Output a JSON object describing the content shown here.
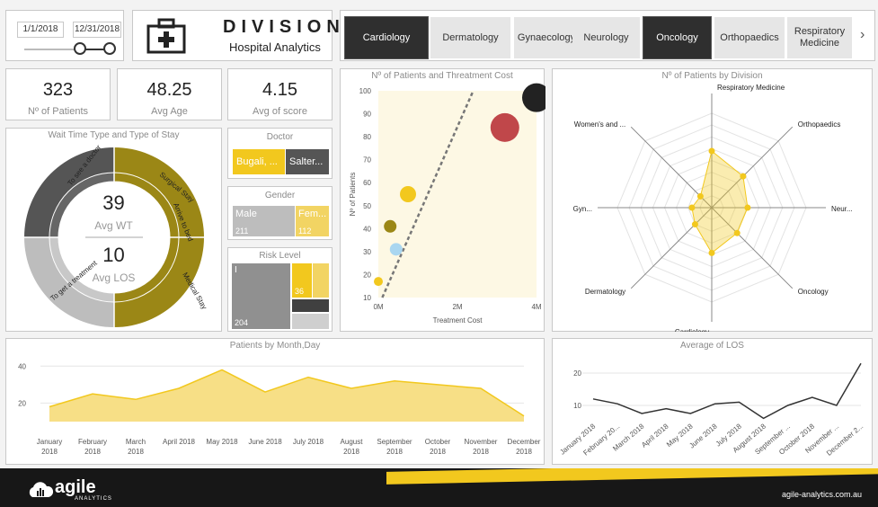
{
  "colors": {
    "accent": "#f2c81e",
    "olive": "#9b8716",
    "dark": "#2f2f2f",
    "grey": "#bdbdbd",
    "red": "#c0474a",
    "blue": "#a9d6f0",
    "footer": "#171717"
  },
  "date_slicer": {
    "start": "1/1/2018",
    "end": "12/31/2018"
  },
  "header": {
    "icon": "medical-bag-icon",
    "title": "DIVISION",
    "subtitle": "Hospital Analytics"
  },
  "tabs": [
    {
      "label": "Cardiology",
      "active": true
    },
    {
      "label": "Dermatology",
      "active": false
    },
    {
      "label": "Gynaecology",
      "active": false
    },
    {
      "label": "Neurology",
      "active": false
    },
    {
      "label": "Oncology",
      "active": true
    },
    {
      "label": "Orthopaedics",
      "active": false
    },
    {
      "label": "Respiratory Medicine",
      "active": false
    }
  ],
  "tabs_next_icon": "chevron-right-icon",
  "kpis": [
    {
      "value": "323",
      "label": "Nº of Patients"
    },
    {
      "value": "48.25",
      "label": "Avg Age"
    },
    {
      "value": "4.15",
      "label": "Avg of score"
    }
  ],
  "wait_time": {
    "title": "Wait Time Type and Type of Stay",
    "avg_wt_value": "39",
    "avg_wt_label": "Avg WT",
    "avg_los_value": "10",
    "avg_los_label": "Avg LOS",
    "outer_labels": [
      "To see a doctor",
      "Surgical Stay",
      "To get a treatment"
    ],
    "inner_labels": [
      "Arrive to bed",
      "Medical Stay"
    ]
  },
  "doctor": {
    "title": "Doctor",
    "items": [
      "Bugali, ...",
      "Salter..."
    ]
  },
  "gender": {
    "title": "Gender",
    "items": [
      {
        "label": "Male",
        "value": "211"
      },
      {
        "label": "Fem...",
        "value": "112"
      }
    ]
  },
  "risk": {
    "title": "Risk Level",
    "items": [
      {
        "label": "I",
        "value": "204"
      },
      {
        "label": "",
        "value": "36"
      }
    ]
  },
  "scatter": {
    "title": "Nº of Patients and Threatment Cost",
    "x_ticks": [
      "0M",
      "2M",
      "4M"
    ],
    "y_ticks": [
      "10",
      "20",
      "30",
      "40",
      "50",
      "60",
      "70",
      "80",
      "90",
      "100"
    ]
  },
  "radar": {
    "title": "Nº of Patients by Division",
    "axes": [
      "Respiratory Medicine",
      "Orthopaedics",
      "Neur...",
      "Oncology",
      "Cardiology",
      "Dermatology",
      "Gyn...",
      "Women's and ..."
    ]
  },
  "month_chart": {
    "title": "Patients by Month,Day",
    "y_ticks": [
      "40",
      "20"
    ],
    "x_labels": [
      [
        "January",
        "2018"
      ],
      [
        "February",
        "2018"
      ],
      [
        "March",
        "2018"
      ],
      [
        "April 2018",
        ""
      ],
      [
        "May 2018",
        ""
      ],
      [
        "June 2018",
        ""
      ],
      [
        "July 2018",
        ""
      ],
      [
        "August",
        "2018"
      ],
      [
        "September",
        "2018"
      ],
      [
        "October",
        "2018"
      ],
      [
        "November",
        "2018"
      ],
      [
        "December",
        "2018"
      ]
    ]
  },
  "los_chart": {
    "title": "Average of LOS",
    "y_ticks": [
      "20",
      "10"
    ],
    "x_labels": [
      "January 2018",
      "February 20...",
      "March 2018",
      "April 2018",
      "May 2018",
      "June 2018",
      "July 2018",
      "August 2018",
      "September ...",
      "October 2018",
      "November ...",
      "December 2..."
    ]
  },
  "footer": {
    "logo_text": "agile",
    "logo_sub": "ANALYTICS",
    "url": "agile-analytics.com.au"
  },
  "chart_data": [
    {
      "type": "scatter",
      "title": "Nº of Patients and Threatment Cost",
      "xlabel": "Treatment Cost",
      "ylabel": "Nº of Patients",
      "xlim": [
        0,
        4000000
      ],
      "ylim": [
        10,
        100
      ],
      "points": [
        {
          "x": 4000000,
          "y": 97,
          "color": "#222222"
        },
        {
          "x": 3200000,
          "y": 84,
          "color": "#c0474a"
        },
        {
          "x": 750000,
          "y": 55,
          "color": "#f2c81e"
        },
        {
          "x": 300000,
          "y": 41,
          "color": "#9b8716"
        },
        {
          "x": 450000,
          "y": 31,
          "color": "#a9d6f0"
        },
        {
          "x": 0,
          "y": 17,
          "color": "#f2c81e"
        }
      ],
      "trend": [
        {
          "x": 100000,
          "y": 10
        },
        {
          "x": 2400000,
          "y": 100
        }
      ]
    },
    {
      "type": "radar",
      "title": "Nº of Patients by Division",
      "categories": [
        "Respiratory Medicine",
        "Orthopaedics",
        "Neur...",
        "Oncology",
        "Cardiology",
        "Dermatology",
        "Gyn...",
        "Women's and ..."
      ],
      "values": [
        0.6,
        0.47,
        0.38,
        0.38,
        0.48,
        0.25,
        0.21,
        0.17
      ]
    },
    {
      "type": "area",
      "title": "Patients by Month,Day",
      "categories": [
        "January 2018",
        "February 2018",
        "March 2018",
        "April 2018",
        "May 2018",
        "June 2018",
        "July 2018",
        "August 2018",
        "September 2018",
        "October 2018",
        "November 2018",
        "December 2018"
      ],
      "values": [
        18,
        25,
        22,
        28,
        38,
        26,
        34,
        28,
        32,
        30,
        28,
        13
      ],
      "ylim": [
        10,
        45
      ]
    },
    {
      "type": "line",
      "title": "Average of LOS",
      "categories": [
        "January 2018",
        "February 20...",
        "March 2018",
        "April 2018",
        "May 2018",
        "June 2018",
        "July 2018",
        "August 2018",
        "September ...",
        "October 2018",
        "November ...",
        "December 2..."
      ],
      "values": [
        12,
        10.5,
        7.5,
        9,
        7.5,
        10.5,
        11,
        6,
        10,
        12.5,
        10,
        23
      ],
      "ylim": [
        5,
        25
      ]
    }
  ]
}
